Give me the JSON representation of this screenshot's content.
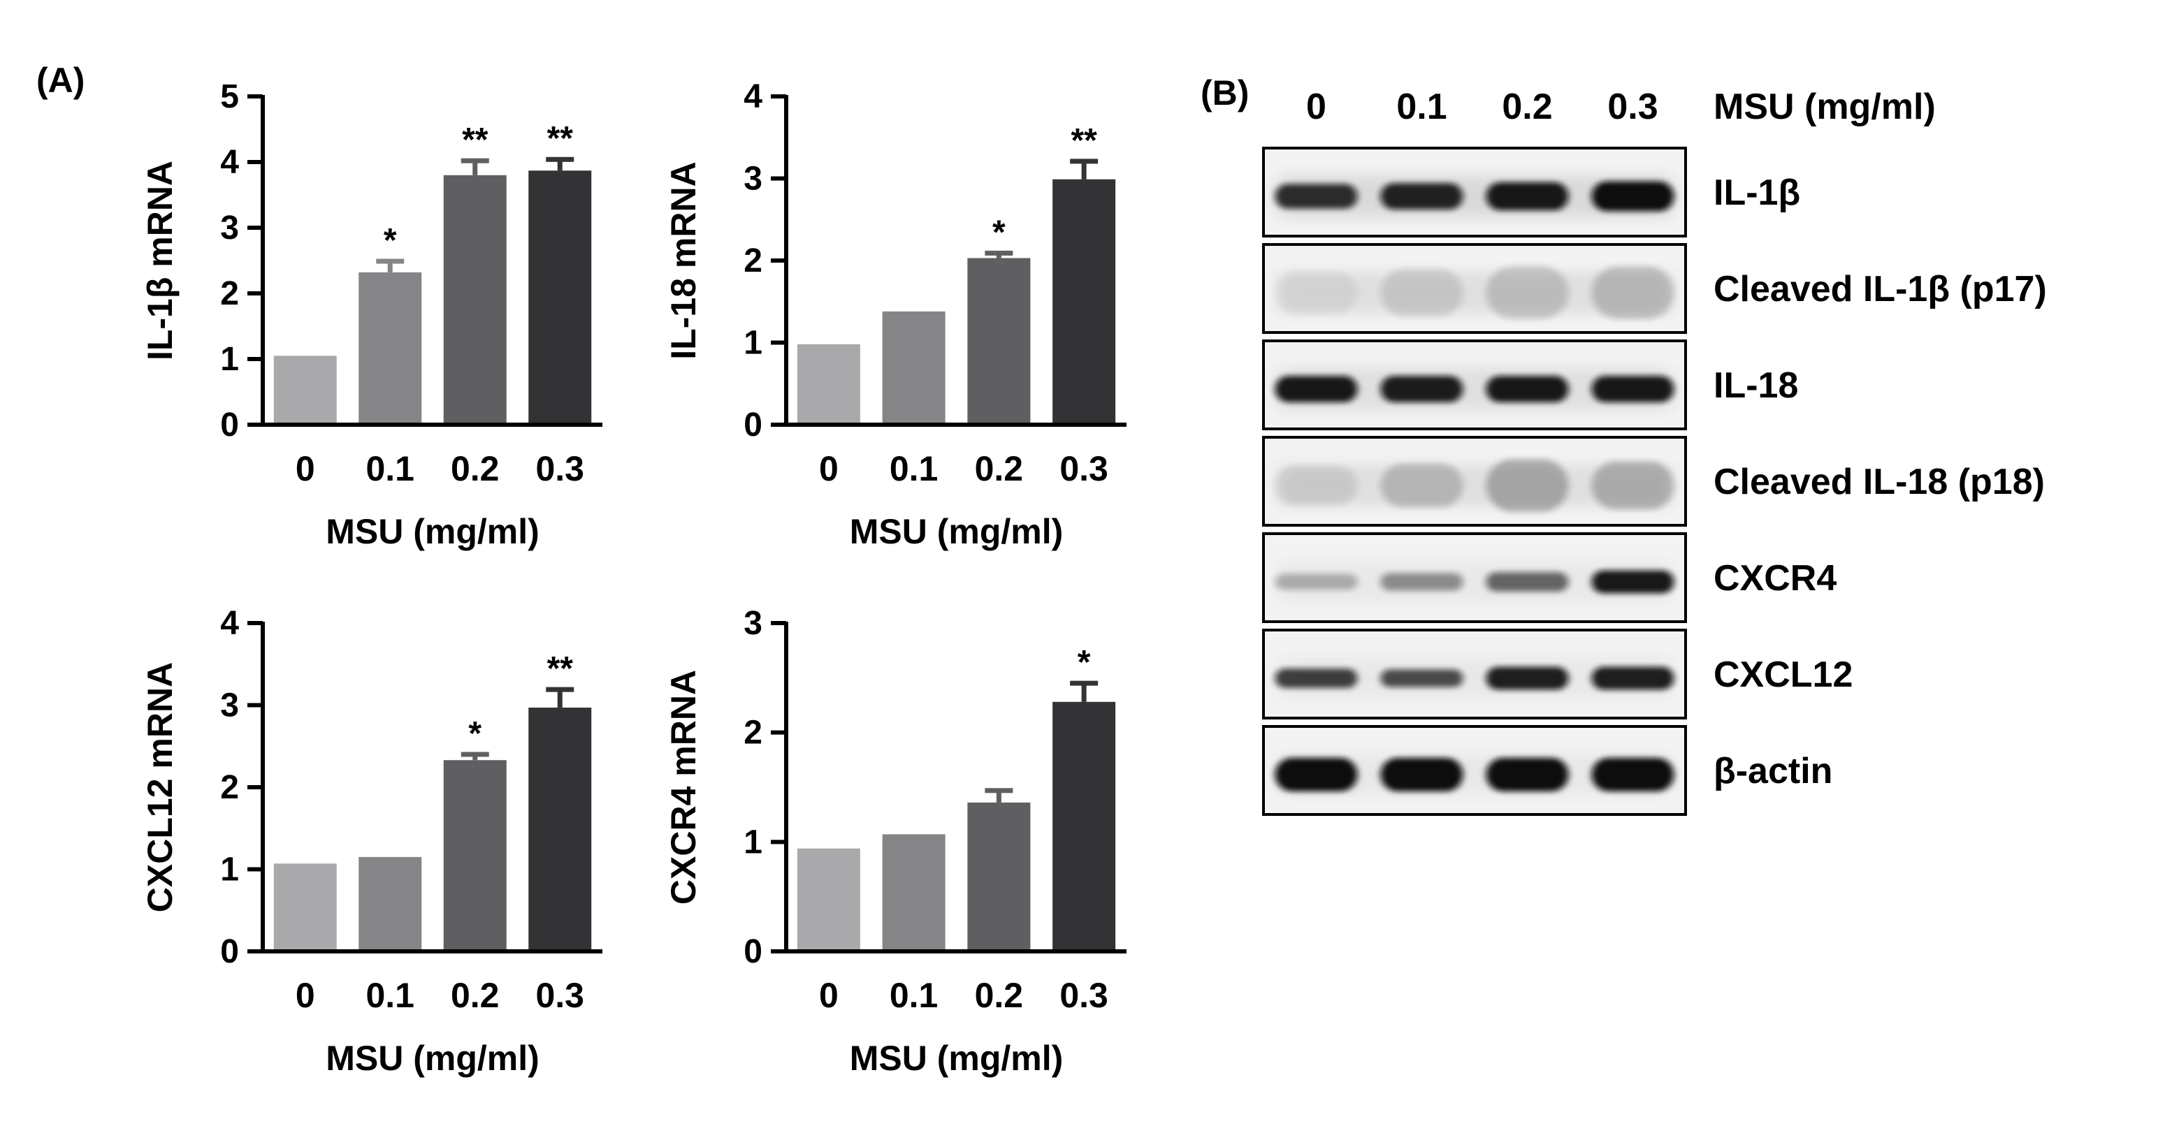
{
  "panel_labels": {
    "a": "(A)",
    "b": "(B)"
  },
  "bar_colors": [
    "#a9a9ab",
    "#858587",
    "#5f5f61",
    "#333335"
  ],
  "chart_data": [
    {
      "type": "bar",
      "ylabel": "IL-1β mRNA",
      "xlabel": "MSU (mg/ml)",
      "categories": [
        "0",
        "0.1",
        "0.2",
        "0.3"
      ],
      "values": [
        1.05,
        2.32,
        3.8,
        3.87
      ],
      "errors": [
        0.0,
        0.17,
        0.22,
        0.17
      ],
      "significance": [
        "",
        "*",
        "**",
        "**"
      ],
      "ylim": [
        0,
        5
      ],
      "yticks": [
        "0",
        "1",
        "2",
        "3",
        "4",
        "5"
      ]
    },
    {
      "type": "bar",
      "ylabel": "IL-18 mRNA",
      "xlabel": "MSU (mg/ml)",
      "categories": [
        "0",
        "0.1",
        "0.2",
        "0.3"
      ],
      "values": [
        0.98,
        1.38,
        2.03,
        2.99
      ],
      "errors": [
        0.0,
        0.0,
        0.06,
        0.22
      ],
      "significance": [
        "",
        "",
        "*",
        "**"
      ],
      "ylim": [
        0,
        4
      ],
      "yticks": [
        "0",
        "1",
        "2",
        "3",
        "4"
      ]
    },
    {
      "type": "bar",
      "ylabel": "CXCL12 mRNA",
      "xlabel": "MSU (mg/ml)",
      "categories": [
        "0",
        "0.1",
        "0.2",
        "0.3"
      ],
      "values": [
        1.07,
        1.15,
        2.33,
        2.97
      ],
      "errors": [
        0.0,
        0.0,
        0.07,
        0.22
      ],
      "significance": [
        "",
        "",
        "*",
        "**"
      ],
      "ylim": [
        0,
        4
      ],
      "yticks": [
        "0",
        "1",
        "2",
        "3",
        "4"
      ]
    },
    {
      "type": "bar",
      "ylabel": "CXCR4 mRNA",
      "xlabel": "MSU (mg/ml)",
      "categories": [
        "0",
        "0.1",
        "0.2",
        "0.3"
      ],
      "values": [
        0.94,
        1.07,
        1.36,
        2.28
      ],
      "errors": [
        0.0,
        0.0,
        0.11,
        0.17
      ],
      "significance": [
        "",
        "",
        "",
        "*"
      ],
      "ylim": [
        0,
        3
      ],
      "yticks": [
        "0",
        "1",
        "2",
        "3"
      ]
    }
  ],
  "blot": {
    "header": "MSU (mg/ml)",
    "lanes": [
      "0",
      "0.1",
      "0.2",
      "0.3"
    ],
    "rows": [
      {
        "label": "IL-1β",
        "intensity": [
          0.85,
          0.9,
          0.95,
          1.0
        ],
        "band_height": [
          0.28,
          0.3,
          0.32,
          0.34
        ],
        "haze": 0.1
      },
      {
        "label": "Cleaved IL-1β (p17)",
        "intensity": [
          0.06,
          0.12,
          0.17,
          0.2
        ],
        "band_height": [
          0.5,
          0.55,
          0.6,
          0.6
        ],
        "haze": 0.08
      },
      {
        "label": "IL-18",
        "intensity": [
          0.95,
          0.93,
          0.95,
          0.95
        ],
        "band_height": [
          0.3,
          0.3,
          0.3,
          0.3
        ],
        "haze": 0.08
      },
      {
        "label": "Cleaved IL-18 (p18)",
        "intensity": [
          0.1,
          0.2,
          0.28,
          0.25
        ],
        "band_height": [
          0.45,
          0.5,
          0.6,
          0.55
        ],
        "haze": 0.08
      },
      {
        "label": "CXCR4",
        "intensity": [
          0.28,
          0.42,
          0.6,
          0.95
        ],
        "band_height": [
          0.18,
          0.2,
          0.22,
          0.26
        ],
        "haze": 0.04
      },
      {
        "label": "CXCL12",
        "intensity": [
          0.78,
          0.72,
          0.92,
          0.92
        ],
        "band_height": [
          0.22,
          0.2,
          0.26,
          0.26
        ],
        "haze": 0.04
      },
      {
        "label": "β-actin",
        "intensity": [
          1.0,
          1.0,
          1.0,
          1.0
        ],
        "band_height": [
          0.38,
          0.38,
          0.38,
          0.38
        ],
        "haze": 0.04
      }
    ]
  }
}
